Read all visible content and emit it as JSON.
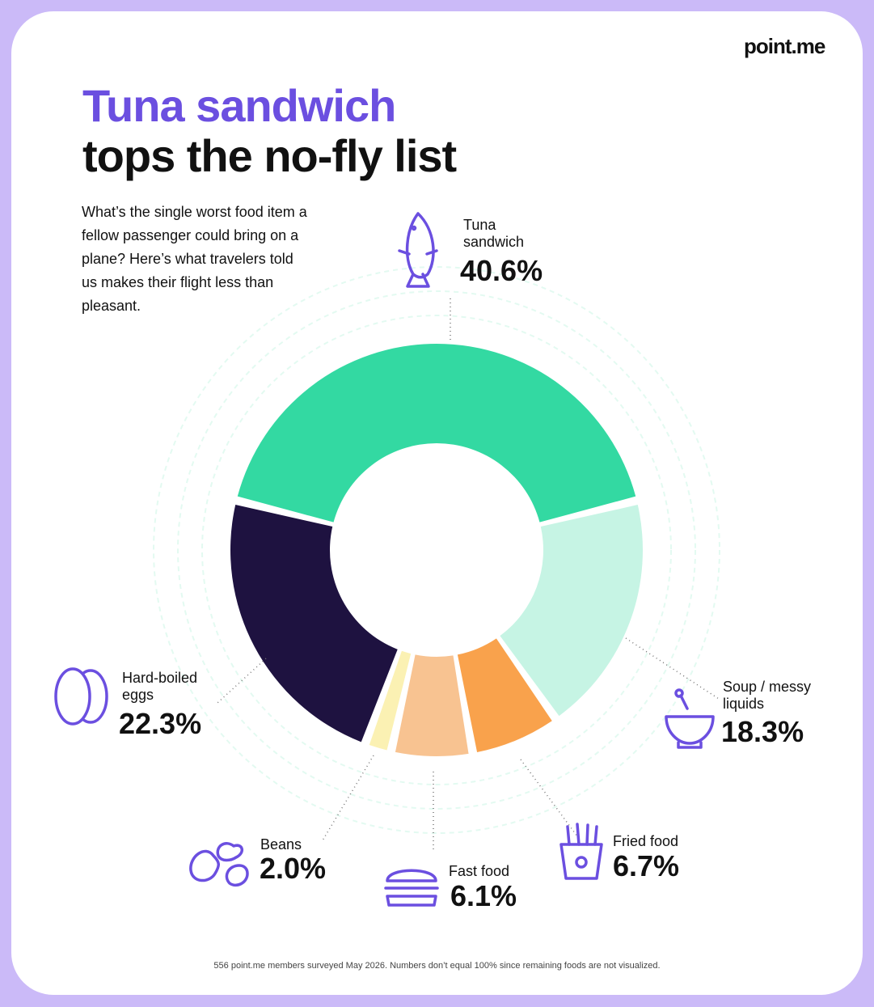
{
  "brand": "point.me",
  "chart_data": {
    "type": "donut",
    "title": [
      "Tuna sandwich",
      "tops the no-fly list"
    ],
    "description": "What’s the single worst food item a fellow passenger could bring on a plane? Here’s what travelers told us makes their flight less than pleasant.",
    "categories": [
      "Tuna sandwich",
      "Soup / messy liquids",
      "Fried food",
      "Fast food",
      "Beans",
      "Hard-boiled eggs"
    ],
    "values": [
      40.6,
      18.3,
      6.7,
      6.1,
      2.0,
      22.3
    ],
    "value_labels": [
      "40.6%",
      "18.3%",
      "6.7%",
      "6.1%",
      "2.0%",
      "22.3%"
    ],
    "colors": [
      "#33d9a2",
      "#c6f4e4",
      "#f9a24c",
      "#f8c391",
      "#fbf1b3",
      "#1e1240"
    ],
    "footnote": "556 point.me members surveyed May 2026. Numbers don’t equal 100% since remaining foods are not visualized."
  }
}
